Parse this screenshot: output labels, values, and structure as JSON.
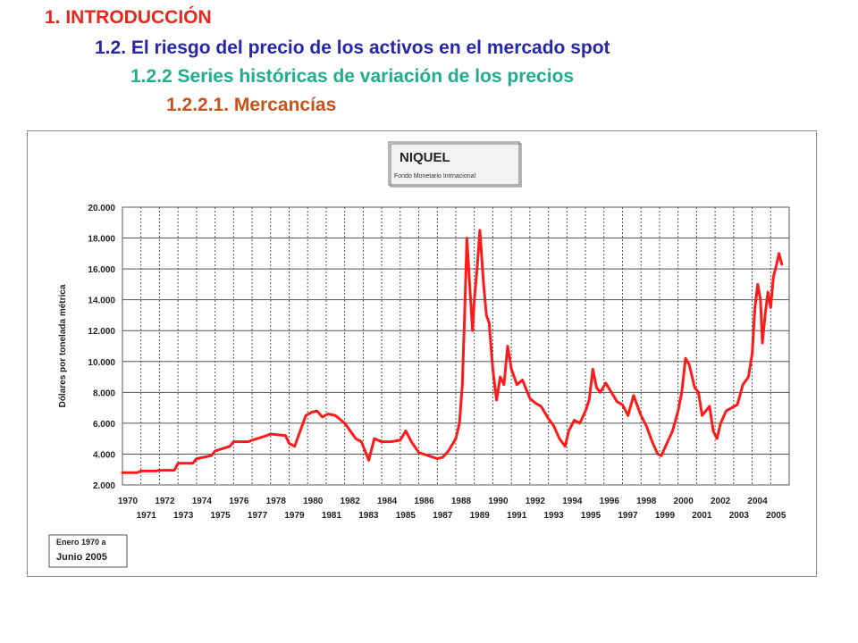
{
  "headings": {
    "h1": "1. INTRODUCCIÓN",
    "h2": "1.2. El riesgo del precio de los activos en el mercado spot",
    "h3": "1.2.2 Series históricas de variación de los precios",
    "h4": "1.2.2.1. Mercancías"
  },
  "colors": {
    "h1": "#e8261b",
    "h2": "#2626a6",
    "h3": "#1fae8c",
    "h4": "#c8521a",
    "series": "#ff1a1a",
    "grid": "#555555"
  },
  "chart_data": {
    "type": "line",
    "title": "NIQUEL",
    "subtitle": "Fondo Monetario Intrnacional",
    "ylabel": "Dólares por tonelada métrica",
    "xlabel": "",
    "ylim": [
      2000,
      20000
    ],
    "xlim": [
      1970,
      2006
    ],
    "grid": true,
    "yticks": [
      {
        "v": 2000,
        "label": "2.000"
      },
      {
        "v": 4000,
        "label": "4.000"
      },
      {
        "v": 6000,
        "label": "6.000"
      },
      {
        "v": 8000,
        "label": "8.000"
      },
      {
        "v": 10000,
        "label": "10.000"
      },
      {
        "v": 12000,
        "label": "12.000"
      },
      {
        "v": 14000,
        "label": "14.000"
      },
      {
        "v": 16000,
        "label": "16.000"
      },
      {
        "v": 18000,
        "label": "18.000"
      },
      {
        "v": 20000,
        "label": "20.000"
      }
    ],
    "xticks_top": [
      "1970",
      "1972",
      "1974",
      "1976",
      "1978",
      "1980",
      "1982",
      "1984",
      "1986",
      "1988",
      "1990",
      "1992",
      "1994",
      "1996",
      "1998",
      "2000",
      "2002",
      "2004"
    ],
    "xticks_bottom": [
      "1971",
      "1973",
      "1975",
      "1977",
      "1979",
      "1981",
      "1983",
      "1985",
      "1987",
      "1989",
      "1991",
      "1993",
      "1995",
      "1997",
      "1999",
      "2001",
      "2003",
      "2005"
    ],
    "note": [
      "Enero 1970 a",
      "Junio 2005"
    ],
    "series": [
      {
        "name": "Niquel",
        "x": [
          1970.0,
          1970.8,
          1971.0,
          1971.8,
          1972.0,
          1972.8,
          1973.0,
          1973.8,
          1974.0,
          1974.8,
          1975.0,
          1975.8,
          1976.0,
          1976.8,
          1977.0,
          1977.8,
          1978.0,
          1978.8,
          1979.0,
          1979.3,
          1979.6,
          1979.9,
          1980.2,
          1980.5,
          1980.8,
          1981.1,
          1981.5,
          1982.0,
          1982.3,
          1982.6,
          1982.9,
          1983.1,
          1983.3,
          1983.6,
          1984.0,
          1984.5,
          1985.0,
          1985.3,
          1985.6,
          1986.0,
          1986.5,
          1987.0,
          1987.3,
          1987.6,
          1988.0,
          1988.2,
          1988.35,
          1988.5,
          1988.6,
          1988.75,
          1988.9,
          1989.0,
          1989.15,
          1989.3,
          1989.5,
          1989.65,
          1989.8,
          1990.0,
          1990.2,
          1990.4,
          1990.6,
          1990.8,
          1991.0,
          1991.3,
          1991.6,
          1992.0,
          1992.3,
          1992.6,
          1993.0,
          1993.3,
          1993.6,
          1993.9,
          1994.1,
          1994.4,
          1994.7,
          1995.0,
          1995.2,
          1995.4,
          1995.6,
          1995.8,
          1996.1,
          1996.4,
          1996.7,
          1997.0,
          1997.3,
          1997.6,
          1998.0,
          1998.3,
          1998.6,
          1998.9,
          1999.1,
          1999.4,
          1999.7,
          2000.0,
          2000.2,
          2000.4,
          2000.6,
          2000.9,
          2001.1,
          2001.3,
          2001.5,
          2001.7,
          2001.9,
          2002.1,
          2002.3,
          2002.6,
          2002.9,
          2003.2,
          2003.5,
          2003.8,
          2004.0,
          2004.15,
          2004.3,
          2004.45,
          2004.55,
          2004.7,
          2004.85,
          2005.0,
          2005.15,
          2005.3,
          2005.45,
          2005.6
        ],
        "y": [
          2800,
          2800,
          2900,
          2900,
          2950,
          2950,
          3400,
          3400,
          3700,
          3900,
          4200,
          4500,
          4800,
          4800,
          4900,
          5200,
          5300,
          5200,
          4700,
          4500,
          5500,
          6500,
          6700,
          6800,
          6400,
          6600,
          6500,
          6000,
          5500,
          5000,
          4800,
          4200,
          3600,
          5000,
          4800,
          4800,
          4900,
          5500,
          4800,
          4100,
          3900,
          3700,
          3800,
          4200,
          5000,
          6000,
          8500,
          14000,
          18000,
          15000,
          12000,
          14000,
          16000,
          18500,
          15000,
          13000,
          12500,
          9500,
          7500,
          9000,
          8500,
          11000,
          9500,
          8500,
          8800,
          7600,
          7300,
          7100,
          6300,
          5800,
          5000,
          4500,
          5500,
          6200,
          6000,
          6800,
          7500,
          9500,
          8300,
          8000,
          8600,
          8000,
          7400,
          7200,
          6500,
          7800,
          6500,
          5800,
          4800,
          4000,
          3900,
          4700,
          5500,
          6800,
          8000,
          10200,
          9800,
          8300,
          8000,
          6500,
          6800,
          7100,
          5500,
          5000,
          6000,
          6800,
          7000,
          7200,
          8500,
          9000,
          10500,
          13500,
          15000,
          14000,
          11200,
          13000,
          14500,
          13500,
          15500,
          16200,
          17000,
          16300
        ]
      }
    ]
  }
}
